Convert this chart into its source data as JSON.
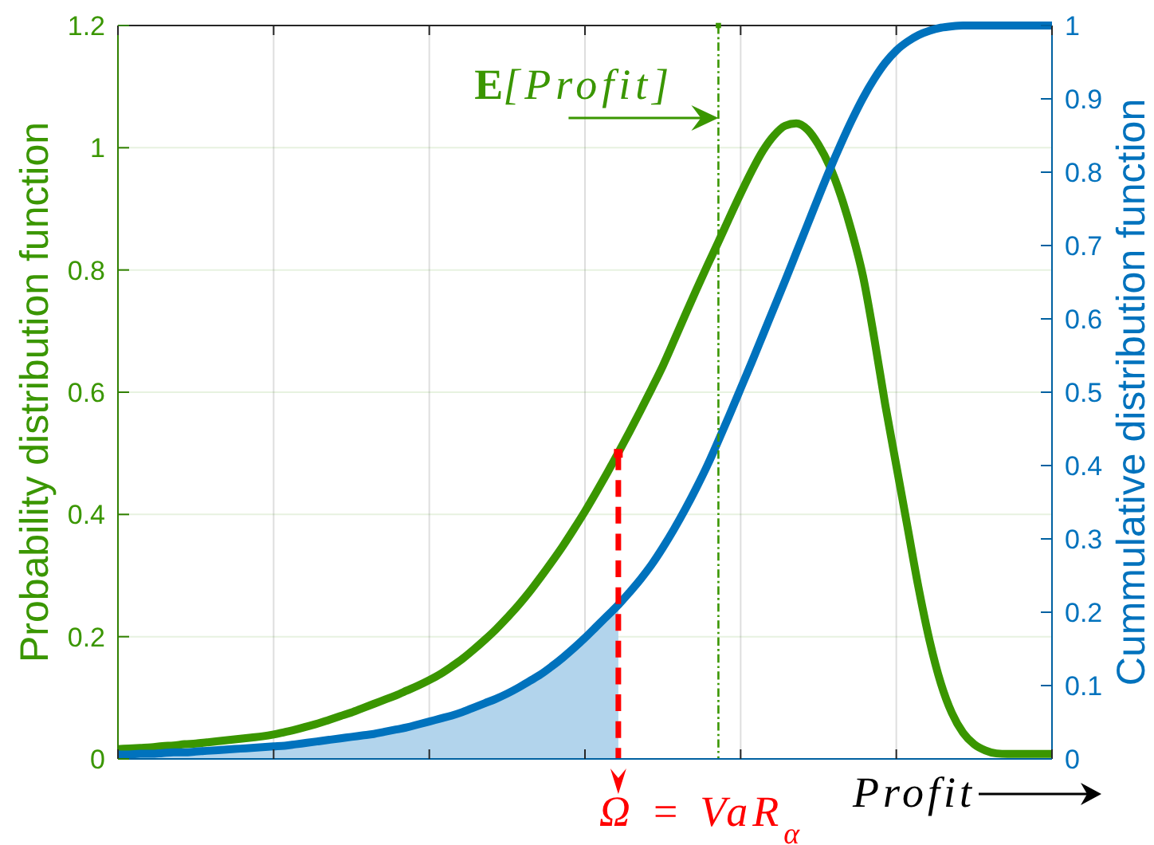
{
  "chart_data": {
    "type": "line",
    "xlabel": "Profit",
    "ylabel": "Probability distribution function",
    "y2label": "Cummulative distribution function",
    "categories": [
      null,
      null,
      null,
      null,
      null,
      null,
      null,
      null,
      null,
      null,
      null,
      null,
      null,
      null,
      null,
      null,
      null,
      null,
      null,
      null,
      null,
      null,
      null,
      null,
      null,
      null,
      null,
      null,
      null,
      null,
      null,
      null,
      null,
      null,
      null,
      null,
      null,
      null,
      null,
      null,
      null,
      null,
      null,
      null,
      null,
      null,
      null,
      null,
      null,
      null,
      null,
      null,
      null,
      null,
      null,
      null,
      null,
      null,
      null,
      null,
      null,
      null,
      null,
      null,
      null,
      null,
      null,
      null,
      null,
      null,
      null,
      null,
      null,
      null,
      null,
      null,
      null,
      null,
      null,
      null,
      null,
      null,
      null,
      null,
      null
    ],
    "ylim": [
      0,
      1.2
    ],
    "yticks": [
      0,
      0.2,
      0.4,
      0.6,
      0.8,
      1,
      1.2
    ],
    "y2lim": [
      0,
      1
    ],
    "y2ticks": [
      0,
      0.1,
      0.2,
      0.3,
      0.4,
      0.5,
      0.6,
      0.7,
      0.8,
      0.9,
      1
    ],
    "grid": true,
    "marker": "none",
    "series": [
      {
        "type": "area",
        "axis": "y2",
        "color": "#b2d4ec",
        "values": [
          0.006,
          0.006,
          0.007,
          0.007,
          0.008,
          0.009,
          0.009,
          0.01,
          0.011,
          0.012,
          0.013,
          0.014,
          0.015,
          0.016,
          0.017,
          0.018,
          0.02,
          0.022,
          0.024,
          0.026,
          0.028,
          0.03,
          0.032,
          0.034,
          0.037,
          0.04,
          0.043,
          0.047,
          0.051,
          0.055,
          0.059,
          0.064,
          0.07,
          0.076,
          0.082,
          0.089,
          0.097,
          0.106,
          0.115,
          0.126,
          0.138,
          0.151,
          0.165,
          0.18,
          0.195,
          0.21,
          null,
          null,
          null,
          null,
          null,
          null,
          null,
          null,
          null,
          null,
          null,
          null,
          null,
          null,
          null,
          null,
          null,
          null,
          null,
          null,
          null,
          null,
          null,
          null,
          null,
          null,
          null,
          null,
          null,
          null,
          null,
          null,
          null,
          null,
          null,
          null,
          null,
          null,
          null
        ]
      },
      {
        "color": "#3a9600",
        "values": [
          0.016,
          0.017,
          0.018,
          0.019,
          0.021,
          0.022,
          0.024,
          0.025,
          0.027,
          0.029,
          0.031,
          0.033,
          0.035,
          0.037,
          0.04,
          0.044,
          0.048,
          0.053,
          0.058,
          0.064,
          0.07,
          0.076,
          0.083,
          0.09,
          0.097,
          0.104,
          0.112,
          0.12,
          0.129,
          0.139,
          0.151,
          0.164,
          0.179,
          0.195,
          0.212,
          0.231,
          0.251,
          0.273,
          0.297,
          0.322,
          0.348,
          0.376,
          0.405,
          0.436,
          0.468,
          0.501,
          0.535,
          0.57,
          0.606,
          0.643,
          0.684,
          0.726,
          0.767,
          0.807,
          0.846,
          0.886,
          0.925,
          0.962,
          0.995,
          1.02,
          1.036,
          1.04,
          1.03,
          1.005,
          0.97,
          0.922,
          0.862,
          0.79,
          0.69,
          0.58,
          0.48,
          0.38,
          0.28,
          0.193,
          0.124,
          0.075,
          0.043,
          0.024,
          0.014,
          0.009,
          0.008,
          0.008,
          0.008,
          0.008,
          0.008
        ]
      },
      {
        "axis": "y2",
        "color": "#0072bd",
        "values": [
          0.006,
          0.006,
          0.007,
          0.007,
          0.008,
          0.009,
          0.009,
          0.01,
          0.011,
          0.012,
          0.013,
          0.014,
          0.015,
          0.016,
          0.017,
          0.018,
          0.02,
          0.022,
          0.024,
          0.026,
          0.028,
          0.03,
          0.032,
          0.034,
          0.037,
          0.04,
          0.043,
          0.047,
          0.051,
          0.055,
          0.059,
          0.064,
          0.07,
          0.076,
          0.082,
          0.089,
          0.097,
          0.106,
          0.115,
          0.126,
          0.138,
          0.151,
          0.165,
          0.18,
          0.195,
          0.21,
          0.227,
          0.245,
          0.265,
          0.288,
          0.313,
          0.34,
          0.369,
          0.4,
          0.434,
          0.469,
          0.505,
          0.541,
          0.578,
          0.615,
          0.652,
          0.69,
          0.728,
          0.766,
          0.803,
          0.838,
          0.871,
          0.901,
          0.927,
          0.949,
          0.966,
          0.978,
          0.987,
          0.993,
          0.997,
          0.999,
          1,
          1,
          1,
          1,
          1,
          1,
          1,
          1,
          1
        ]
      },
      {
        "type": "lollipop",
        "color": "#3a9600",
        "line_style": "dotted",
        "marker": "square",
        "values": [
          null,
          null,
          null,
          null,
          null,
          null,
          null,
          null,
          null,
          null,
          null,
          null,
          null,
          null,
          null,
          null,
          null,
          null,
          null,
          null,
          null,
          null,
          null,
          null,
          null,
          null,
          null,
          null,
          null,
          null,
          null,
          null,
          null,
          null,
          null,
          null,
          null,
          null,
          null,
          null,
          null,
          null,
          null,
          null,
          null,
          null,
          null,
          null,
          null,
          null,
          null,
          null,
          null,
          null,
          1.2,
          null,
          null,
          null,
          null,
          null,
          null,
          null,
          null,
          null,
          null,
          null,
          null,
          null,
          null,
          null,
          null,
          null,
          null,
          null,
          null,
          null,
          null,
          null,
          null,
          null,
          null,
          null,
          null,
          null,
          null
        ]
      },
      {
        "type": "lollipop",
        "color": "#ff0000",
        "line_style": "dashed",
        "marker": "square",
        "values": [
          null,
          null,
          null,
          null,
          null,
          null,
          null,
          null,
          null,
          null,
          null,
          null,
          null,
          null,
          null,
          null,
          null,
          null,
          null,
          null,
          null,
          null,
          null,
          null,
          null,
          null,
          null,
          null,
          null,
          null,
          null,
          null,
          null,
          null,
          null,
          null,
          null,
          null,
          null,
          null,
          null,
          null,
          null,
          null,
          null,
          0.5,
          null,
          null,
          null,
          null,
          null,
          null,
          null,
          null,
          null,
          null,
          null,
          null,
          null,
          null,
          null,
          null,
          null,
          null,
          null,
          null,
          null,
          null,
          null,
          null,
          null,
          null,
          null,
          null,
          null,
          null,
          null,
          null,
          null,
          null,
          null,
          null,
          null,
          null,
          null
        ]
      }
    ],
    "annotations": [
      "E[Profit]",
      "Ω = VaR$_{α}$"
    ]
  }
}
